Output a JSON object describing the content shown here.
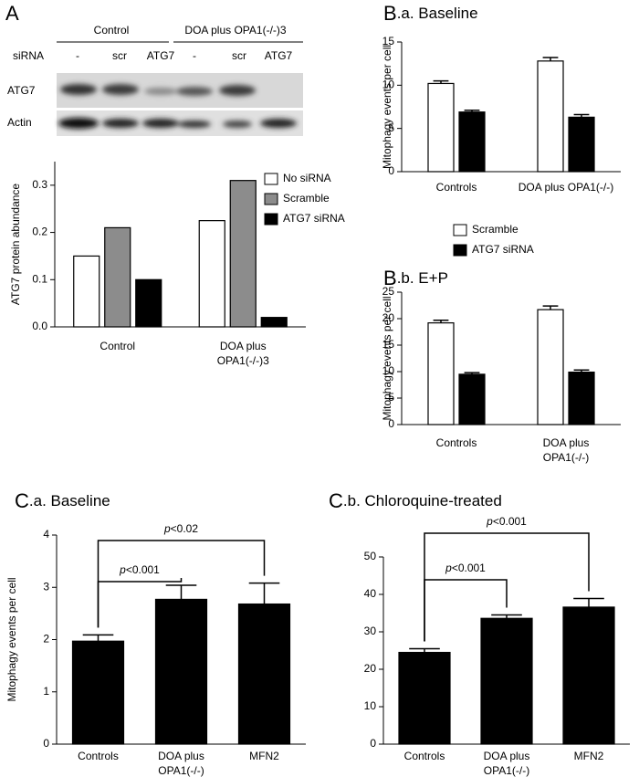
{
  "blot": {
    "label": "A",
    "groups": [
      "Control",
      "DOA plus OPA1(-/-)3"
    ],
    "row_header": "siRNA",
    "lanes": [
      "-",
      "scr",
      "ATG7",
      "-",
      "scr",
      "ATG7"
    ],
    "rows": [
      "ATG7",
      "Actin"
    ]
  },
  "chart_data": [
    {
      "type": "bar",
      "ylabel": "ATG7 protein abundance",
      "categories": [
        [
          "Control"
        ],
        [
          "DOA plus",
          "OPA1(-/-)3"
        ]
      ],
      "series": [
        {
          "name": "No siRNA",
          "color": "#ffffff",
          "values": [
            0.15,
            0.225
          ]
        },
        {
          "name": "Scramble",
          "color": "#8c8c8c",
          "values": [
            0.21,
            0.31
          ]
        },
        {
          "name": "ATG7 siRNA",
          "color": "#000000",
          "values": [
            0.1,
            0.02
          ]
        }
      ],
      "ylim": [
        0,
        0.35
      ],
      "yticks": [
        {
          "value": 0,
          "label": "0.0"
        },
        0.1,
        0.2,
        0.3
      ],
      "legend": "upper right"
    },
    {
      "type": "bar",
      "label": "B",
      "title": ".a. Baseline",
      "ylabel": "Mitophagy events per cell",
      "categories": [
        [
          "Controls"
        ],
        [
          "DOA plus OPA1(-/-)"
        ]
      ],
      "series": [
        {
          "name": "Scramble",
          "color": "#ffffff",
          "values": [
            10.2,
            12.8
          ],
          "errors": [
            0.3,
            0.4
          ]
        },
        {
          "name": "ATG7 siRNA",
          "color": "#000000",
          "values": [
            6.9,
            6.3
          ],
          "errors": [
            0.2,
            0.3
          ]
        }
      ],
      "ylim": [
        0,
        15
      ],
      "yticks": [
        0,
        5,
        10,
        15
      ]
    },
    {
      "type": "bar",
      "label": "B",
      "title": ".b. E+P",
      "ylabel": "Mitophagy events per cell",
      "categories": [
        [
          "Controls"
        ],
        [
          "DOA plus",
          "OPA1(-/-)"
        ]
      ],
      "series": [
        {
          "name": "Scramble",
          "color": "#ffffff",
          "values": [
            19.2,
            21.7
          ],
          "errors": [
            0.5,
            0.7
          ]
        },
        {
          "name": "ATG7 siRNA",
          "color": "#000000",
          "values": [
            9.5,
            9.9
          ],
          "errors": [
            0.3,
            0.4
          ]
        }
      ],
      "ylim": [
        0,
        25
      ],
      "yticks": [
        0,
        5,
        10,
        15,
        20,
        25
      ],
      "legend": "above"
    },
    {
      "type": "bar",
      "label": "C",
      "title": ".a. Baseline",
      "ylabel": "Mitophagy events per cell",
      "categories": [
        [
          "Controls"
        ],
        [
          "DOA plus",
          "OPA1(-/-)"
        ],
        [
          "MFN2"
        ]
      ],
      "values": [
        1.97,
        2.77,
        2.68
      ],
      "errors": [
        0.12,
        0.27,
        0.4
      ],
      "color": "#000000",
      "ylim": [
        0,
        4
      ],
      "yticks": [
        0,
        1,
        2,
        3,
        4
      ],
      "annotations": [
        {
          "text": "p<0.001",
          "from": 0,
          "to": 1
        },
        {
          "text": "p<0.02",
          "from": 0,
          "to": 2
        }
      ]
    },
    {
      "type": "bar",
      "label": "C",
      "title": ".b. Chloroquine-treated",
      "categories": [
        [
          "Controls"
        ],
        [
          "DOA plus",
          "OPA1(-/-)"
        ],
        [
          "MFN2"
        ]
      ],
      "values": [
        24.5,
        33.6,
        36.6
      ],
      "errors": [
        1.0,
        0.9,
        2.3
      ],
      "color": "#000000",
      "ylim": [
        0,
        50
      ],
      "yticks": [
        0,
        10,
        20,
        30,
        40,
        50
      ],
      "annotations": [
        {
          "text": "p<0.001",
          "from": 0,
          "to": 1
        },
        {
          "text": "p<0.001",
          "from": 0,
          "to": 2
        }
      ]
    }
  ]
}
